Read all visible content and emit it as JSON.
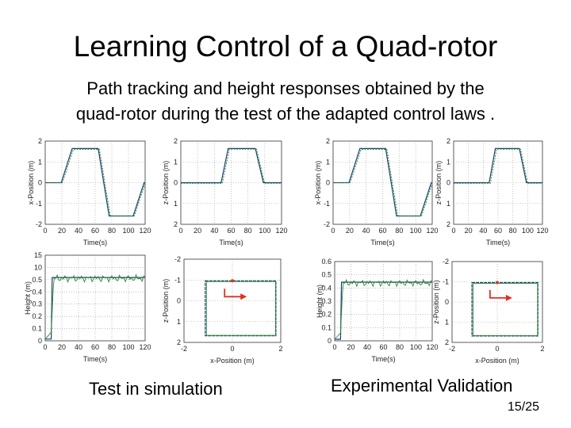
{
  "slide": {
    "title": "Learning Control of a Quad-rotor",
    "subtitle_line1": "Path tracking and height responses obtained by the",
    "subtitle_line2": "quad-rotor during the test of the adapted control laws .",
    "caption_sim": "Test in simulation",
    "caption_exp": "Experimental Validation",
    "page_number": "15/25"
  },
  "colors": {
    "reference": "#1a3f7a",
    "response": "#2e8b2e",
    "arrow": "#e03020",
    "grid": "#9a9a9a"
  },
  "panels": [
    {
      "id": "sim-x",
      "ylabel": "x-Position (m)",
      "xlabel": "Time(s)",
      "xticks": [
        "0",
        "20",
        "40",
        "60",
        "80",
        "100",
        "120"
      ],
      "yticks": [
        "2",
        "1",
        "0",
        "-1",
        "-2"
      ]
    },
    {
      "id": "sim-z",
      "ylabel": "z-Position (m)",
      "xlabel": "Time(s)",
      "xticks": [
        "0",
        "20",
        "40",
        "60",
        "80",
        "100",
        "120"
      ],
      "yticks": [
        "2",
        "1",
        "0",
        "1",
        "2"
      ]
    },
    {
      "id": "exp-x",
      "ylabel": "x-Position (m)",
      "xlabel": "Time(s)",
      "xticks": [
        "0",
        "20",
        "40",
        "60",
        "80",
        "100",
        "120"
      ],
      "yticks": [
        "2",
        "1",
        "0",
        "-1",
        "-2"
      ]
    },
    {
      "id": "exp-z",
      "ylabel": "z-Position (m)",
      "xlabel": "Time(s)",
      "xticks": [
        "0",
        "20",
        "40",
        "60",
        "80",
        "100",
        "120"
      ],
      "yticks": [
        "2",
        "1",
        "0",
        "1",
        "2"
      ]
    },
    {
      "id": "sim-h",
      "ylabel": "Height (m)",
      "xlabel": "Time(s)",
      "xticks": [
        "0",
        "20",
        "40",
        "60",
        "80",
        "100",
        "120"
      ],
      "yticks": [
        "15",
        "10",
        "0.5",
        "0.4",
        "0.3",
        "0.2",
        "0.1",
        "0"
      ]
    },
    {
      "id": "sim-xz",
      "ylabel": "z-Position (m)",
      "xlabel": "x-Position (m)",
      "xticks": [
        "-2",
        "0",
        "2"
      ],
      "yticks": [
        "-2",
        "-1",
        "0",
        "1",
        "2"
      ]
    },
    {
      "id": "exp-h",
      "ylabel": "Height (m)",
      "xlabel": "Time(s)",
      "xticks": [
        "0",
        "20",
        "40",
        "60",
        "80",
        "100",
        "120"
      ],
      "yticks": [
        "0.6",
        "0.5",
        "0.4",
        "0.3",
        "0.2",
        "0.1",
        "0"
      ]
    },
    {
      "id": "exp-xz",
      "ylabel": "z-Position (m)",
      "xlabel": "x-Position (m)",
      "xticks": [
        "-2",
        "0",
        "2"
      ],
      "yticks": [
        "-2",
        "-1",
        "0",
        "1",
        "2"
      ]
    }
  ]
}
